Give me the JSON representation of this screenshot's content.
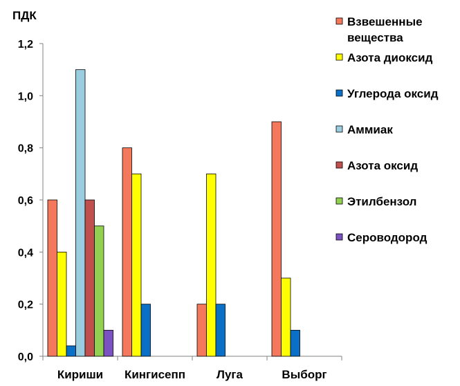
{
  "chart_data": {
    "type": "bar",
    "title": "",
    "ylabel": "ПДК",
    "xlabel": "",
    "ylim": [
      0,
      1.2
    ],
    "y_ticks": [
      "0,0",
      "0,2",
      "0,4",
      "0,6",
      "0,8",
      "1,0",
      "1,2"
    ],
    "grid": false,
    "legend_position": "right",
    "categories": [
      "Кириши",
      "Кингисепп",
      "Луга",
      "Выборг"
    ],
    "series": [
      {
        "name": "Взвешенные вещества",
        "color": "#f4785c",
        "values": [
          0.6,
          0.8,
          0.2,
          0.9
        ]
      },
      {
        "name": "Азота диоксид",
        "color": "#ffff00",
        "values": [
          0.4,
          0.7,
          0.7,
          0.3
        ]
      },
      {
        "name": "Углерода оксид",
        "color": "#0a6fc6",
        "values": [
          0.04,
          0.2,
          0.2,
          0.1
        ]
      },
      {
        "name": "Аммиак",
        "color": "#9bcde0",
        "values": [
          1.1,
          null,
          null,
          null
        ]
      },
      {
        "name": "Азота оксид",
        "color": "#c0504d",
        "values": [
          0.6,
          null,
          null,
          null
        ]
      },
      {
        "name": "Этилбензол",
        "color": "#92d050",
        "values": [
          0.5,
          null,
          null,
          null
        ]
      },
      {
        "name": "Сероводород",
        "color": "#7b52c1",
        "values": [
          0.1,
          null,
          null,
          null
        ]
      }
    ]
  }
}
